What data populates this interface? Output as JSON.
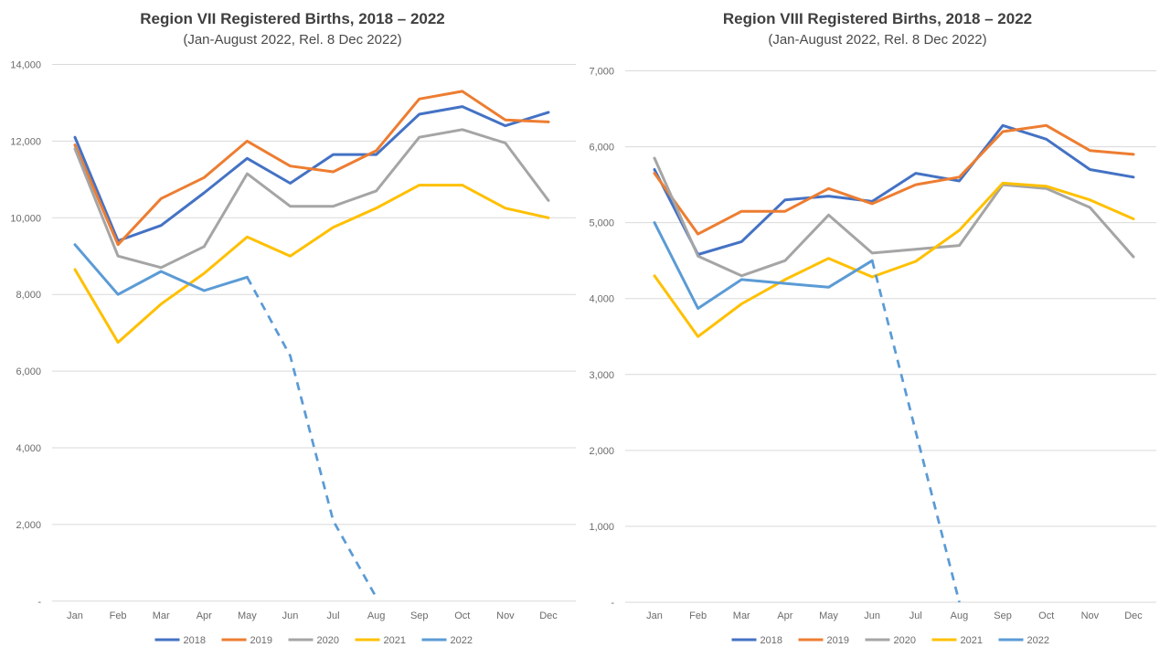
{
  "page": {
    "background": "#FFFFFF"
  },
  "palette": {
    "2018": "#4472C4",
    "2019": "#ED7D31",
    "2020": "#A5A5A5",
    "2021": "#FFC000",
    "2022": "#5B9BD5",
    "gridline": "#D9D9D9",
    "axis_text": "#6B6B6B",
    "title_text": "#3F3F3F"
  },
  "chart_data": [
    {
      "type": "line",
      "title": "Region VII Registered Births, 2018 – 2022",
      "subtitle": "(Jan-August 2022, Rel. 8 Dec 2022)",
      "categories": [
        "Jan",
        "Feb",
        "Mar",
        "Apr",
        "May",
        "Jun",
        "Jul",
        "Aug",
        "Sep",
        "Oct",
        "Nov",
        "Dec"
      ],
      "ylim": [
        0,
        14000
      ],
      "ytick_step": 2000,
      "ytick_labels": [
        "-",
        "2,000",
        "4,000",
        "6,000",
        "8,000",
        "10,000",
        "12,000",
        "14,000"
      ],
      "grid": true,
      "legend_position": "bottom",
      "legend_entries": [
        "2018",
        "2019",
        "2020",
        "2021",
        "2022"
      ],
      "series": [
        {
          "name": "2018",
          "color": "#4472C4",
          "values": [
            12100,
            9400,
            9800,
            10650,
            11550,
            10900,
            11650,
            11650,
            12700,
            12900,
            12400,
            12750
          ]
        },
        {
          "name": "2019",
          "color": "#ED7D31",
          "values": [
            11900,
            9300,
            10500,
            11050,
            12000,
            11350,
            11200,
            11750,
            13100,
            13300,
            12550,
            12500
          ]
        },
        {
          "name": "2020",
          "color": "#A5A5A5",
          "values": [
            11800,
            9000,
            8700,
            9250,
            11150,
            10300,
            10300,
            10700,
            12100,
            12300,
            11950,
            10450
          ]
        },
        {
          "name": "2021",
          "color": "#FFC000",
          "values": [
            8650,
            6750,
            7750,
            8550,
            9500,
            9000,
            9750,
            10250,
            10850,
            10850,
            10250,
            10000
          ]
        },
        {
          "name": "2022",
          "color": "#5B9BD5",
          "values": [
            9300,
            8000,
            8600,
            8100,
            8450,
            6400,
            2100,
            100,
            null,
            null,
            null,
            null
          ],
          "dash_from_index": 4
        }
      ]
    },
    {
      "type": "line",
      "title": "Region VIII Registered Births, 2018 – 2022",
      "subtitle": "(Jan-August 2022, Rel. 8 Dec 2022)",
      "categories": [
        "Jan",
        "Feb",
        "Mar",
        "Apr",
        "May",
        "Jun",
        "Jul",
        "Aug",
        "Sep",
        "Oct",
        "Nov",
        "Dec"
      ],
      "ylim": [
        0,
        7000
      ],
      "ytick_step": 1000,
      "ytick_labels": [
        "-",
        "1,000",
        "2,000",
        "3,000",
        "4,000",
        "5,000",
        "6,000",
        "7,000"
      ],
      "grid": true,
      "legend_position": "bottom",
      "legend_entries": [
        "2018",
        "2019",
        "2020",
        "2021",
        "2022"
      ],
      "series": [
        {
          "name": "2018",
          "color": "#4472C4",
          "values": [
            5700,
            4580,
            4750,
            5300,
            5350,
            5280,
            5650,
            5550,
            6280,
            6100,
            5700,
            5600
          ]
        },
        {
          "name": "2019",
          "color": "#ED7D31",
          "values": [
            5650,
            4850,
            5150,
            5150,
            5450,
            5250,
            5500,
            5600,
            6200,
            6280,
            5950,
            5900
          ]
        },
        {
          "name": "2020",
          "color": "#A5A5A5",
          "values": [
            5850,
            4560,
            4300,
            4500,
            5100,
            4600,
            4650,
            4700,
            5500,
            5450,
            5200,
            4550
          ]
        },
        {
          "name": "2021",
          "color": "#FFC000",
          "values": [
            4300,
            3500,
            3930,
            4250,
            4530,
            4285,
            4490,
            4900,
            5520,
            5480,
            5300,
            5050
          ]
        },
        {
          "name": "2022",
          "color": "#5B9BD5",
          "values": [
            5000,
            3870,
            4250,
            4200,
            4150,
            4500,
            2250,
            0,
            null,
            null,
            null,
            null
          ],
          "dash_from_index": 5
        }
      ]
    }
  ]
}
